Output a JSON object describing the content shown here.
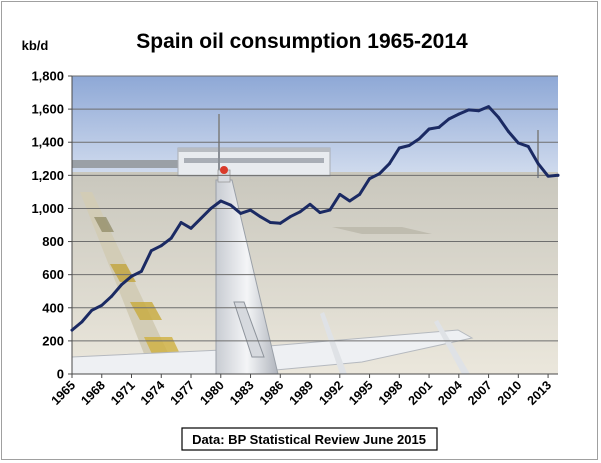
{
  "chart_data": {
    "type": "line",
    "title": "Spain oil consumption 1965-2014",
    "unit_label": "kb/d",
    "source_note": "Data: BP Statistical Review June 2015",
    "xlim": [
      1965,
      2014
    ],
    "ylim": [
      0,
      1800
    ],
    "y_ticks": [
      "0",
      "200",
      "400",
      "600",
      "800",
      "1,000",
      "1,200",
      "1,400",
      "1,600",
      "1,800"
    ],
    "x_ticks": [
      "1965",
      "1968",
      "1971",
      "1974",
      "1977",
      "1980",
      "1983",
      "1986",
      "1989",
      "1992",
      "1995",
      "1998",
      "2001",
      "2004",
      "2007",
      "2010",
      "2013"
    ],
    "grid": true,
    "background": "photo of an airport apron with an aircraft tail fin",
    "series_color": "#1b2a63",
    "x": [
      1965,
      1966,
      1967,
      1968,
      1969,
      1970,
      1971,
      1972,
      1973,
      1974,
      1975,
      1976,
      1977,
      1978,
      1979,
      1980,
      1981,
      1982,
      1983,
      1984,
      1985,
      1986,
      1987,
      1988,
      1989,
      1990,
      1991,
      1992,
      1993,
      1994,
      1995,
      1996,
      1997,
      1998,
      1999,
      2000,
      2001,
      2002,
      2003,
      2004,
      2005,
      2006,
      2007,
      2008,
      2009,
      2010,
      2011,
      2012,
      2013,
      2014
    ],
    "values": [
      265,
      315,
      385,
      415,
      470,
      540,
      590,
      620,
      745,
      775,
      820,
      915,
      880,
      940,
      1000,
      1045,
      1020,
      970,
      990,
      950,
      915,
      910,
      950,
      980,
      1025,
      975,
      990,
      1085,
      1045,
      1085,
      1180,
      1210,
      1270,
      1365,
      1380,
      1420,
      1480,
      1490,
      1540,
      1570,
      1595,
      1590,
      1615,
      1550,
      1465,
      1395,
      1375,
      1270,
      1195,
      1200
    ]
  }
}
